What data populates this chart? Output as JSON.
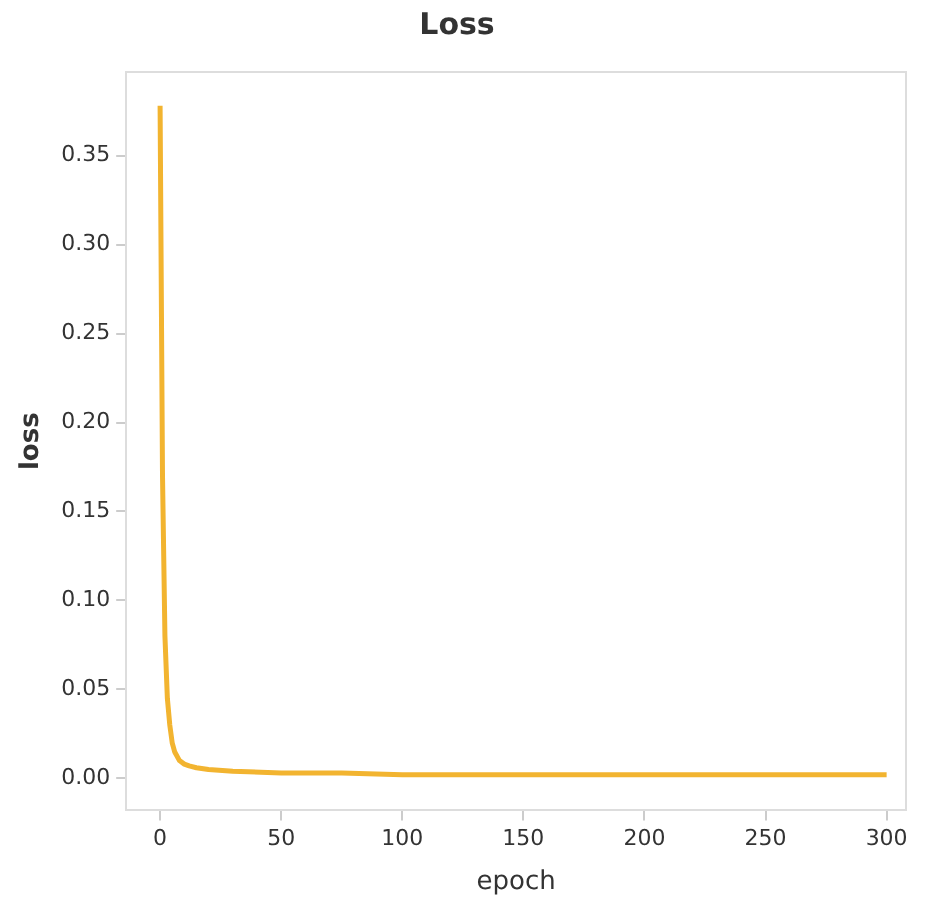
{
  "chart_data": {
    "type": "line",
    "title": "Loss",
    "xlabel": "epoch",
    "ylabel": "loss",
    "x": [
      0,
      1,
      2,
      3,
      4,
      5,
      6,
      8,
      10,
      12,
      15,
      20,
      30,
      50,
      75,
      100,
      150,
      200,
      250,
      300
    ],
    "series": [
      {
        "color": "#f2b430",
        "values": [
          0.378,
          0.17,
          0.08,
          0.045,
          0.03,
          0.02,
          0.015,
          0.01,
          0.008,
          0.007,
          0.006,
          0.005,
          0.004,
          0.003,
          0.003,
          0.002,
          0.002,
          0.002,
          0.002,
          0.002
        ]
      }
    ],
    "xlim": [
      -14,
      308
    ],
    "xticks": [
      0,
      50,
      100,
      150,
      200,
      250,
      300
    ],
    "ylim": [
      -0.018,
      0.397
    ],
    "yticks": [
      {
        "value": 0,
        "label": "0.00"
      },
      {
        "value": 0.05,
        "label": "0.05"
      },
      {
        "value": 0.1,
        "label": "0.10"
      },
      {
        "value": 0.15,
        "label": "0.15"
      },
      {
        "value": 0.2,
        "label": "0.20"
      },
      {
        "value": 0.25,
        "label": "0.25"
      },
      {
        "value": 0.3,
        "label": "0.30"
      },
      {
        "value": 0.35,
        "label": "0.35"
      }
    ],
    "grid": false,
    "legend": false,
    "marker": "none",
    "line_style": "solid"
  }
}
